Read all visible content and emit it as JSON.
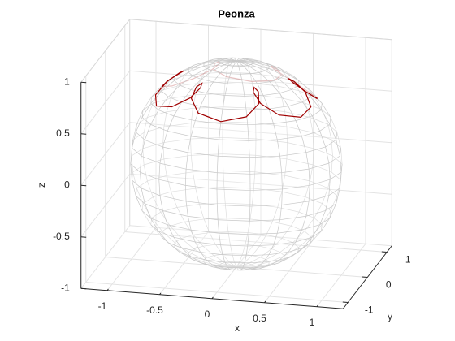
{
  "chart_data": {
    "type": "line3d",
    "title": "Peonza",
    "xlabel": "x",
    "ylabel": "y",
    "zlabel": "z",
    "xlim": [
      -1.25,
      1.25
    ],
    "ylim": [
      -1.25,
      1.25
    ],
    "zlim": [
      -1,
      1
    ],
    "xticks": [
      -1,
      -0.5,
      0,
      0.5,
      1
    ],
    "yticks": [
      -1,
      0,
      1
    ],
    "zticks": [
      -1,
      -0.5,
      0,
      0.5,
      1
    ],
    "grid": true,
    "surface": {
      "type": "sphere",
      "radius": 1,
      "color": "#c8c8c8"
    },
    "series": [
      {
        "color": "#a00000",
        "x": [
          0.497,
          0.546,
          0.659,
          0.741,
          0.689,
          0.512,
          0.337,
          0.252,
          0.249,
          0.296,
          0.323,
          0.23,
          0,
          -0.229,
          -0.322,
          -0.295,
          -0.249,
          -0.251,
          -0.336,
          -0.511,
          -0.689,
          -0.741,
          -0.659,
          -0.547,
          -0.497,
          -0.546,
          -0.659,
          -0.741,
          -0.689,
          -0.512,
          -0.337,
          -0.252,
          -0.249,
          -0.296,
          -0.323,
          -0.23,
          0,
          0.229,
          0.322,
          0.295,
          0.249,
          0.251,
          0.336,
          0.511,
          0.689,
          0.741,
          0.659,
          0.547,
          0.497
        ],
        "y": [
          0,
          -0.025,
          0.008,
          0.163,
          0.398,
          0.561,
          0.567,
          0.485,
          0.43,
          0.461,
          0.575,
          0.723,
          0.796,
          0.723,
          0.575,
          0.461,
          0.43,
          0.487,
          0.568,
          0.561,
          0.398,
          0.164,
          0.009,
          -0.024,
          0,
          0.025,
          -0.008,
          -0.163,
          -0.398,
          -0.561,
          -0.567,
          -0.485,
          -0.43,
          -0.461,
          -0.575,
          -0.723,
          -0.796,
          -0.723,
          -0.575,
          -0.461,
          -0.43,
          -0.487,
          -0.568,
          -0.561,
          -0.398,
          -0.164,
          -0.009,
          0.024,
          0
        ],
        "z": [
          0.868,
          0.837,
          0.752,
          0.652,
          0.605,
          0.652,
          0.752,
          0.837,
          0.868,
          0.837,
          0.752,
          0.652,
          0.605,
          0.652,
          0.752,
          0.837,
          0.868,
          0.837,
          0.752,
          0.652,
          0.605,
          0.652,
          0.752,
          0.837,
          0.868,
          0.837,
          0.752,
          0.652,
          0.605,
          0.652,
          0.752,
          0.837,
          0.868,
          0.837,
          0.752,
          0.652,
          0.605,
          0.652,
          0.752,
          0.837,
          0.868,
          0.837,
          0.752,
          0.652,
          0.605,
          0.652,
          0.752,
          0.837,
          0.868
        ]
      }
    ]
  }
}
